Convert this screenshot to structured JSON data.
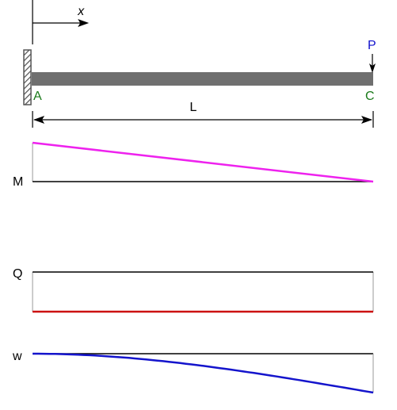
{
  "labels": {
    "x_axis": "x",
    "load": "P",
    "support_left": "A",
    "support_right": "C",
    "length": "L",
    "moment": "M",
    "shear": "Q",
    "deflection": "w"
  },
  "colors": {
    "beam": "#6f6f6f",
    "load": "#1010cc",
    "support_labels": "#1a7a1a",
    "moment_curve": "#ee22ee",
    "shear_curve": "#cc1111",
    "deflection_curve": "#1414cc",
    "lines": "#000000"
  }
}
